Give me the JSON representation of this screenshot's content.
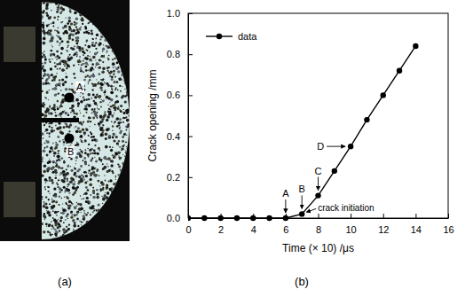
{
  "chart_data": {
    "type": "line",
    "x": [
      0,
      1,
      2,
      3,
      4,
      5,
      6,
      7,
      8,
      9,
      10,
      11,
      12,
      13,
      14
    ],
    "series": [
      {
        "name": "data",
        "color": "#000000",
        "marker": "circle",
        "line_style": "solid",
        "values": [
          0,
          0,
          0,
          0,
          0,
          0,
          0,
          0.02,
          0.11,
          0.23,
          0.35,
          0.48,
          0.6,
          0.72,
          0.84
        ]
      }
    ],
    "xlabel": "Time (× 10) /μs",
    "ylabel": "Crack opening /mm",
    "xlim": [
      0,
      16
    ],
    "ylim": [
      0,
      1
    ],
    "xticks": [
      0,
      2,
      4,
      6,
      8,
      10,
      12,
      14,
      16
    ],
    "yticks": [
      {
        "value": 0,
        "label": "0.0"
      },
      {
        "value": 0.2,
        "label": "0.2"
      },
      {
        "value": 0.4,
        "label": "0.4"
      },
      {
        "value": 0.6,
        "label": "0.6"
      },
      {
        "value": 0.8,
        "label": "0.8"
      },
      {
        "value": 1,
        "label": "1.0"
      }
    ],
    "legend": "upper left",
    "annotations": [
      {
        "text": "A",
        "x": 6,
        "y": 0
      },
      {
        "text": "B",
        "x": 7,
        "y": 0.02
      },
      {
        "text": "C",
        "x": 8,
        "y": 0.11
      },
      {
        "text": "D",
        "x": 10,
        "y": 0.35
      },
      {
        "text": "crack initiation",
        "x": 7,
        "y": 0.02
      }
    ]
  },
  "figure": {
    "panel_labels": [
      "(a)",
      "(b)"
    ],
    "specimen_points": [
      "A",
      "B"
    ]
  }
}
